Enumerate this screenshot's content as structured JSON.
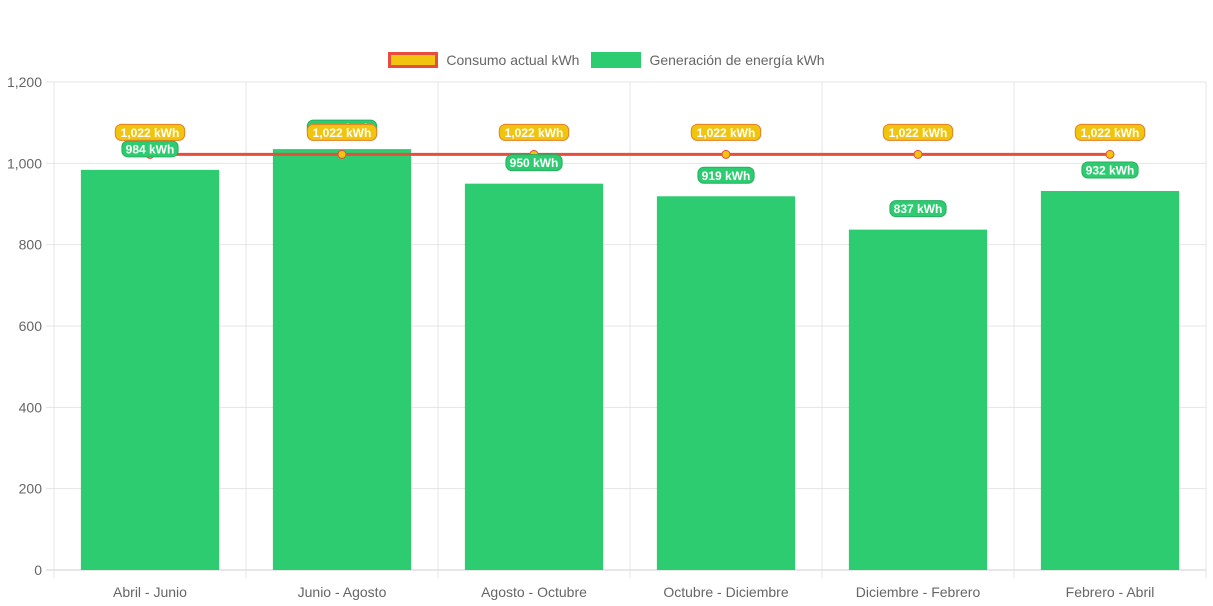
{
  "chart_data": {
    "type": "bar",
    "categories": [
      "Abril - Junio",
      "Junio - Agosto",
      "Agosto - Octubre",
      "Octubre - Diciembre",
      "Diciembre - Febrero",
      "Febrero - Abril"
    ],
    "series": [
      {
        "name": "Consumo actual kWh",
        "type": "line",
        "values": [
          1022,
          1022,
          1022,
          1022,
          1022,
          1022
        ],
        "labels": [
          "1,022 kWh",
          "1,022 kWh",
          "1,022 kWh",
          "1,022 kWh",
          "1,022 kWh",
          "1,022 kWh"
        ],
        "color": "#e74c3c",
        "point_color": "#f1c40f"
      },
      {
        "name": "Generación de energía kWh",
        "type": "bar",
        "values": [
          984,
          1035,
          950,
          919,
          837,
          932
        ],
        "labels": [
          "984 kWh",
          "1,035 kWh",
          "950 kWh",
          "919 kWh",
          "837 kWh",
          "932 kWh"
        ],
        "color": "#2ecc71"
      }
    ],
    "yticks": [
      "0",
      "200",
      "400",
      "600",
      "800",
      "1,000",
      "1,200"
    ],
    "ylim": [
      0,
      1200
    ],
    "ytick_step": 200,
    "grid": true,
    "legend_position": "top"
  }
}
